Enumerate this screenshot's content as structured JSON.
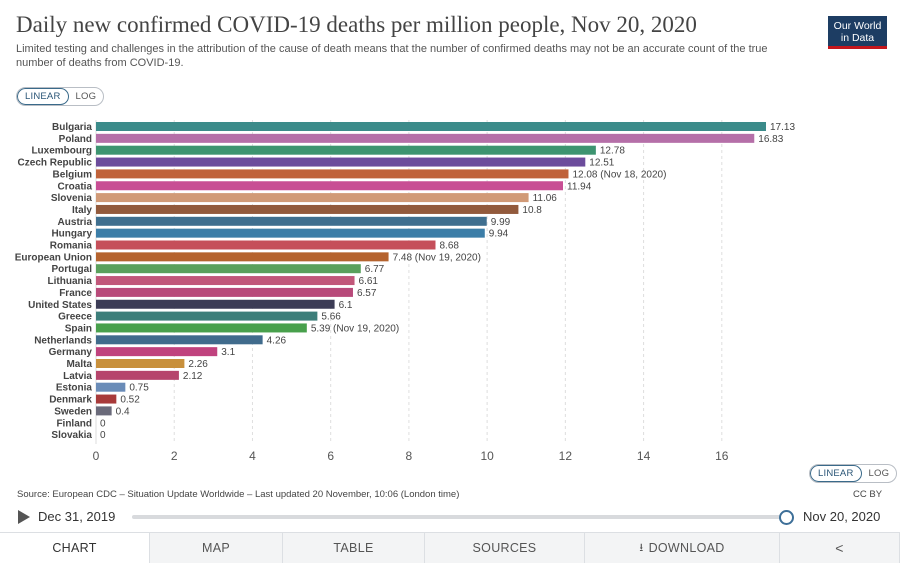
{
  "title": "Daily new confirmed COVID-19 deaths per million people, Nov 20, 2020",
  "subtitle": "Limited testing and challenges in the attribution of the cause of death means that the number of confirmed deaths may not be an accurate count of the true number of deaths from COVID-19.",
  "logo": {
    "line1": "Our World",
    "line2": "in Data"
  },
  "scale_toggle": {
    "linear": "LINEAR",
    "log": "LOG",
    "selected": "LINEAR"
  },
  "source": "Source: European CDC – Situation Update Worldwide – Last updated 20 November, 10:06 (London time)",
  "license": "CC BY",
  "timeline": {
    "start": "Dec 31, 2019",
    "end": "Nov 20, 2020",
    "progress": 1.0
  },
  "tabs": [
    {
      "label": "CHART",
      "icon": null,
      "active": true
    },
    {
      "label": "MAP",
      "icon": null,
      "active": false
    },
    {
      "label": "TABLE",
      "icon": null,
      "active": false
    },
    {
      "label": "SOURCES",
      "icon": null,
      "active": false
    },
    {
      "label": "DOWNLOAD",
      "icon": "download-icon",
      "active": false
    },
    {
      "label": "",
      "icon": "share-icon",
      "active": false
    }
  ],
  "chart_data": {
    "type": "bar",
    "orientation": "horizontal",
    "xlim": [
      0,
      17.13
    ],
    "xticks": [
      0,
      2,
      4,
      6,
      8,
      10,
      12,
      14,
      16
    ],
    "grid": true,
    "bars": [
      {
        "label": "Bulgaria",
        "value": 17.13,
        "value_label": "17.13",
        "color": "#3b8b8a"
      },
      {
        "label": "Poland",
        "value": 16.83,
        "value_label": "16.83",
        "color": "#b56fa8"
      },
      {
        "label": "Luxembourg",
        "value": 12.78,
        "value_label": "12.78",
        "color": "#3d9470"
      },
      {
        "label": "Czech Republic",
        "value": 12.51,
        "value_label": "12.51",
        "color": "#6c4c9c"
      },
      {
        "label": "Belgium",
        "value": 12.08,
        "value_label": "12.08 (Nov 18, 2020)",
        "color": "#c0623a"
      },
      {
        "label": "Croatia",
        "value": 11.94,
        "value_label": "11.94",
        "color": "#c84e94"
      },
      {
        "label": "Slovenia",
        "value": 11.06,
        "value_label": "11.06",
        "color": "#d19a77"
      },
      {
        "label": "Italy",
        "value": 10.8,
        "value_label": "10.8",
        "color": "#925a3c"
      },
      {
        "label": "Austria",
        "value": 9.99,
        "value_label": "9.99",
        "color": "#3f6f8f"
      },
      {
        "label": "Hungary",
        "value": 9.94,
        "value_label": "9.94",
        "color": "#3c7ea8"
      },
      {
        "label": "Romania",
        "value": 8.68,
        "value_label": "8.68",
        "color": "#c54f5a"
      },
      {
        "label": "European Union",
        "value": 7.48,
        "value_label": "7.48 (Nov 19, 2020)",
        "color": "#b5632e"
      },
      {
        "label": "Portugal",
        "value": 6.77,
        "value_label": "6.77",
        "color": "#5aa05c"
      },
      {
        "label": "Lithuania",
        "value": 6.61,
        "value_label": "6.61",
        "color": "#c1577a"
      },
      {
        "label": "France",
        "value": 6.57,
        "value_label": "6.57",
        "color": "#b84a7a"
      },
      {
        "label": "United States",
        "value": 6.1,
        "value_label": "6.1",
        "color": "#3c3c56"
      },
      {
        "label": "Greece",
        "value": 5.66,
        "value_label": "5.66",
        "color": "#3d7e7a"
      },
      {
        "label": "Spain",
        "value": 5.39,
        "value_label": "5.39 (Nov 19, 2020)",
        "color": "#48a04c"
      },
      {
        "label": "Netherlands",
        "value": 4.26,
        "value_label": "4.26",
        "color": "#406b8c"
      },
      {
        "label": "Germany",
        "value": 3.1,
        "value_label": "3.1",
        "color": "#c0427e"
      },
      {
        "label": "Malta",
        "value": 2.26,
        "value_label": "2.26",
        "color": "#c8903c"
      },
      {
        "label": "Latvia",
        "value": 2.12,
        "value_label": "2.12",
        "color": "#b6456c"
      },
      {
        "label": "Estonia",
        "value": 0.75,
        "value_label": "0.75",
        "color": "#6a8cb8"
      },
      {
        "label": "Denmark",
        "value": 0.52,
        "value_label": "0.52",
        "color": "#a83a3a"
      },
      {
        "label": "Sweden",
        "value": 0.4,
        "value_label": "0.4",
        "color": "#6a6a7a"
      },
      {
        "label": "Finland",
        "value": 0,
        "value_label": "0",
        "color": "#3d5a80"
      },
      {
        "label": "Slovakia",
        "value": 0,
        "value_label": "0",
        "color": "#5a4a8a"
      }
    ]
  }
}
